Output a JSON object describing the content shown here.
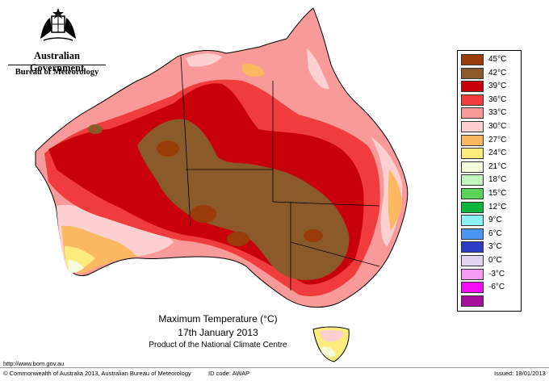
{
  "header": {
    "government": "Australian Government",
    "bureau": "Bureau of Meteorology"
  },
  "legend": [
    {
      "label": "45°C",
      "color": "#9a3b0a"
    },
    {
      "label": "42°C",
      "color": "#8b5a2b"
    },
    {
      "label": "39°C",
      "color": "#c8000a"
    },
    {
      "label": "36°C",
      "color": "#f03c3c"
    },
    {
      "label": "33°C",
      "color": "#f89a9a"
    },
    {
      "label": "30°C",
      "color": "#fcd0d0"
    },
    {
      "label": "27°C",
      "color": "#fcb860"
    },
    {
      "label": "24°C",
      "color": "#fcec7c"
    },
    {
      "label": "21°C",
      "color": "#f4fcdc"
    },
    {
      "label": "18°C",
      "color": "#c4f4c0"
    },
    {
      "label": "15°C",
      "color": "#58d45c"
    },
    {
      "label": "12°C",
      "color": "#0cb43c"
    },
    {
      "label": "9°C",
      "color": "#8cf4f4"
    },
    {
      "label": "6°C",
      "color": "#4c94f4"
    },
    {
      "label": "3°C",
      "color": "#2c3cc4"
    },
    {
      "label": "0°C",
      "color": "#e4d4f4"
    },
    {
      "label": "-3°C",
      "color": "#f49cf4"
    },
    {
      "label": "-6°C",
      "color": "#f40cf4"
    },
    {
      "label": "",
      "color": "#a4109c"
    }
  ],
  "caption": {
    "title": "Maximum Temperature (°C)",
    "date": "17th January 2013",
    "product": "Product of the National Climate Centre"
  },
  "footer": {
    "url": "http://www.bom.gov.au",
    "copyright": "© Commonwealth of Australia 2013, Australian Bureau of Meteorology",
    "id_code": "ID code: AWAP",
    "issued": "Issued: 18/01/2013"
  }
}
